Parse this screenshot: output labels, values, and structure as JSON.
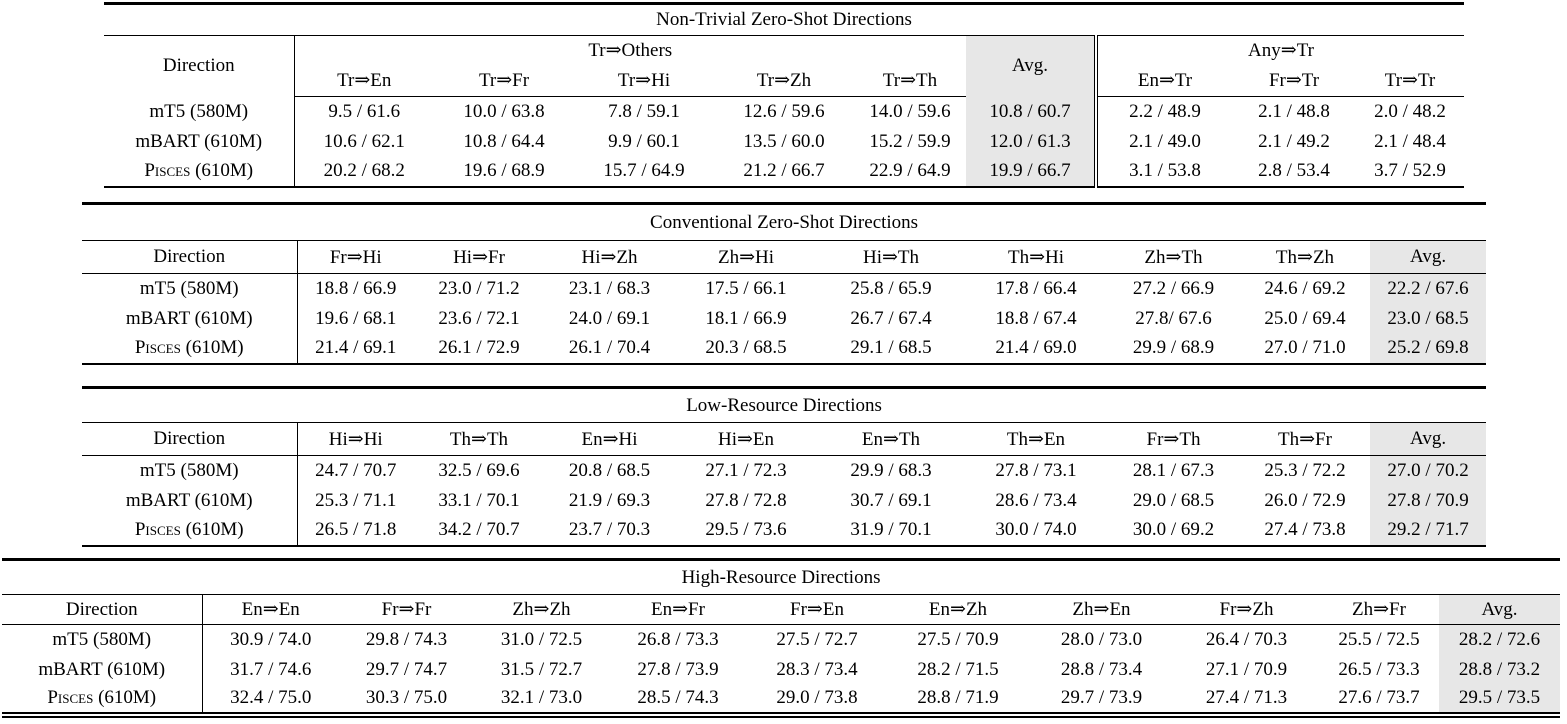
{
  "styles": {
    "avg_column_bg": "#e7e7e7",
    "rule_color": "#000000",
    "text_color": "#000000"
  },
  "tables": [
    {
      "title": "Non-Trivial Zero-Shot Directions",
      "direction_label": "Direction",
      "group_header": [
        {
          "label": "Tr⇒Others",
          "span": 5
        },
        {
          "label": "Avg.",
          "span": 1,
          "is_avg": true
        },
        {
          "label": "Any⇒Tr",
          "span": 3,
          "double_left": true
        }
      ],
      "sub_columns": [
        "Tr⇒En",
        "Tr⇒Fr",
        "Tr⇒Hi",
        "Tr⇒Zh",
        "Tr⇒Th",
        "En⇒Tr",
        "Fr⇒Tr",
        "Tr⇒Tr"
      ],
      "avg_index": 5,
      "double_border_sub_index": 5,
      "double_border_value_index": 6,
      "rows": [
        {
          "model": "mT5 (580M)",
          "small_caps": false,
          "values": [
            "9.5 / 61.6",
            "10.0 / 63.8",
            "7.8 / 59.1",
            "12.6 / 59.6",
            "14.0 / 59.6",
            "10.8 / 60.7",
            "2.2 / 48.9",
            "2.1 / 48.8",
            "2.0 / 48.2"
          ]
        },
        {
          "model": "mBART (610M)",
          "small_caps": false,
          "values": [
            "10.6 / 62.1",
            "10.8 / 64.4",
            "9.9 / 60.1",
            "13.5 / 60.0",
            "15.2 / 59.9",
            "12.0 / 61.3",
            "2.1 / 49.0",
            "2.1 / 49.2",
            "2.1 / 48.4"
          ]
        },
        {
          "model": "Pisces (610M)",
          "small_caps": true,
          "values": [
            "20.2 / 68.2",
            "19.6 / 68.9",
            "15.7 / 64.9",
            "21.2 / 66.7",
            "22.9 / 64.9",
            "19.9 / 66.7",
            "3.1 / 53.8",
            "2.8 / 53.4",
            "3.7 / 52.9"
          ]
        }
      ]
    },
    {
      "title": "Conventional Zero-Shot Directions",
      "direction_label": "Direction",
      "columns": [
        "Fr⇒Hi",
        "Hi⇒Fr",
        "Hi⇒Zh",
        "Zh⇒Hi",
        "Hi⇒Th",
        "Th⇒Hi",
        "Zh⇒Th",
        "Th⇒Zh",
        "Avg."
      ],
      "avg_index": 8,
      "rows": [
        {
          "model": "mT5 (580M)",
          "small_caps": false,
          "values": [
            "18.8 / 66.9",
            "23.0 / 71.2",
            "23.1 / 68.3",
            "17.5 / 66.1",
            "25.8 / 65.9",
            "17.8 / 66.4",
            "27.2 / 66.9",
            "24.6 / 69.2",
            "22.2 / 67.6"
          ]
        },
        {
          "model": "mBART (610M)",
          "small_caps": false,
          "values": [
            "19.6 / 68.1",
            "23.6 / 72.1",
            "24.0 / 69.1",
            "18.1 / 66.9",
            "26.7 / 67.4",
            "18.8 / 67.4",
            "27.8/ 67.6",
            "25.0 / 69.4",
            "23.0 / 68.5"
          ]
        },
        {
          "model": "Pisces (610M)",
          "small_caps": true,
          "values": [
            "21.4 / 69.1",
            "26.1 / 72.9",
            "26.1 / 70.4",
            "20.3 / 68.5",
            "29.1 / 68.5",
            "21.4 / 69.0",
            "29.9 / 68.9",
            "27.0 / 71.0",
            "25.2 / 69.8"
          ]
        }
      ]
    },
    {
      "title": "Low-Resource Directions",
      "direction_label": "Direction",
      "columns": [
        "Hi⇒Hi",
        "Th⇒Th",
        "En⇒Hi",
        "Hi⇒En",
        "En⇒Th",
        "Th⇒En",
        "Fr⇒Th",
        "Th⇒Fr",
        "Avg."
      ],
      "avg_index": 8,
      "rows": [
        {
          "model": "mT5 (580M)",
          "small_caps": false,
          "values": [
            "24.7 / 70.7",
            "32.5 / 69.6",
            "20.8 / 68.5",
            "27.1 / 72.3",
            "29.9 / 68.3",
            "27.8 / 73.1",
            "28.1 / 67.3",
            "25.3 / 72.2",
            "27.0 / 70.2"
          ]
        },
        {
          "model": "mBART (610M)",
          "small_caps": false,
          "values": [
            "25.3 / 71.1",
            "33.1 / 70.1",
            "21.9 / 69.3",
            "27.8 / 72.8",
            "30.7 / 69.1",
            "28.6 / 73.4",
            "29.0 / 68.5",
            "26.0 / 72.9",
            "27.8 / 70.9"
          ]
        },
        {
          "model": "Pisces (610M)",
          "small_caps": true,
          "values": [
            "26.5 / 71.8",
            "34.2 / 70.7",
            "23.7 / 70.3",
            "29.5 / 73.6",
            "31.9 / 70.1",
            "30.0 / 74.0",
            "30.0 / 69.2",
            "27.4 / 73.8",
            "29.2 / 71.7"
          ]
        }
      ]
    },
    {
      "title": "High-Resource Directions",
      "direction_label": "Direction",
      "columns": [
        "En⇒En",
        "Fr⇒Fr",
        "Zh⇒Zh",
        "En⇒Fr",
        "Fr⇒En",
        "En⇒Zh",
        "Zh⇒En",
        "Fr⇒Zh",
        "Zh⇒Fr",
        "Avg."
      ],
      "avg_index": 9,
      "rows": [
        {
          "model": "mT5 (580M)",
          "small_caps": false,
          "values": [
            "30.9 / 74.0",
            "29.8 / 74.3",
            "31.0 / 72.5",
            "26.8 / 73.3",
            "27.5 / 72.7",
            "27.5 / 70.9",
            "28.0 / 73.0",
            "26.4 / 70.3",
            "25.5 / 72.5",
            "28.2 / 72.6"
          ]
        },
        {
          "model": "mBART (610M)",
          "small_caps": false,
          "values": [
            "31.7 / 74.6",
            "29.7 / 74.7",
            "31.5 / 72.7",
            "27.8 / 73.9",
            "28.3 / 73.4",
            "28.2 / 71.5",
            "28.8 / 73.4",
            "27.1 / 70.9",
            "26.5 / 73.3",
            "28.8 / 73.2"
          ]
        },
        {
          "model": "Pisces (610M)",
          "small_caps": true,
          "values": [
            "32.4 / 75.0",
            "30.3 / 75.0",
            "32.1 / 73.0",
            "28.5 / 74.3",
            "29.0 / 73.8",
            "28.8 / 71.9",
            "29.7 / 73.9",
            "27.4 / 71.3",
            "27.6 / 73.7",
            "29.5 / 73.5"
          ]
        }
      ]
    }
  ]
}
